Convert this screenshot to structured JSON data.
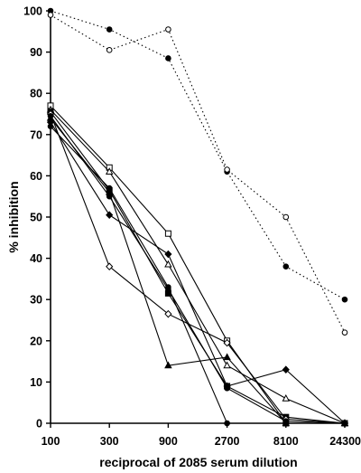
{
  "chart_data": {
    "type": "line",
    "title": "",
    "xlabel": "reciprocal of 2085 serum dilution",
    "ylabel": "% inhibition",
    "x": [
      100,
      300,
      900,
      2700,
      8100,
      24300
    ],
    "x_tick_labels": [
      "100",
      "300",
      "900",
      "2700",
      "8100",
      "24300"
    ],
    "x_scale": "log",
    "ylim": [
      0,
      100
    ],
    "y_ticks": [
      0,
      10,
      20,
      30,
      40,
      50,
      60,
      70,
      80,
      90,
      100
    ],
    "y_tick_labels": [
      "0",
      "10",
      "20",
      "30",
      "40",
      "50",
      "60",
      "70",
      "80",
      "90",
      "100"
    ],
    "grid": false,
    "legend": "none",
    "series": [
      {
        "style": "dotted",
        "marker": "filled-circle",
        "values": [
          100,
          95.5,
          88.5,
          61,
          38,
          30
        ]
      },
      {
        "style": "dotted",
        "marker": "open-circle",
        "values": [
          99,
          90.5,
          95.5,
          61.5,
          50,
          22
        ]
      },
      {
        "style": "solid",
        "marker": "open-square",
        "values": [
          77,
          62,
          46,
          20,
          0,
          0
        ]
      },
      {
        "style": "solid",
        "marker": "open-triangle",
        "values": [
          76,
          61,
          38.5,
          14,
          6,
          0
        ]
      },
      {
        "style": "solid",
        "marker": "filled-triangle",
        "values": [
          74,
          56,
          14,
          16,
          0,
          0
        ]
      },
      {
        "style": "solid",
        "marker": "filled-square",
        "values": [
          75.5,
          56.5,
          31.5,
          9,
          1.5,
          0
        ]
      },
      {
        "style": "solid",
        "marker": "filled-diamond",
        "values": [
          73,
          50.5,
          41,
          9,
          13,
          0
        ]
      },
      {
        "style": "solid",
        "marker": "filled-circle",
        "values": [
          72,
          57,
          33,
          0,
          0,
          0
        ]
      },
      {
        "style": "solid",
        "marker": "open-diamond",
        "values": [
          75,
          38,
          26.5,
          19.5,
          1,
          0
        ]
      },
      {
        "style": "solid",
        "marker": "filled-circle",
        "values": [
          74.5,
          55,
          32.5,
          8.5,
          0.5,
          0
        ]
      }
    ]
  }
}
